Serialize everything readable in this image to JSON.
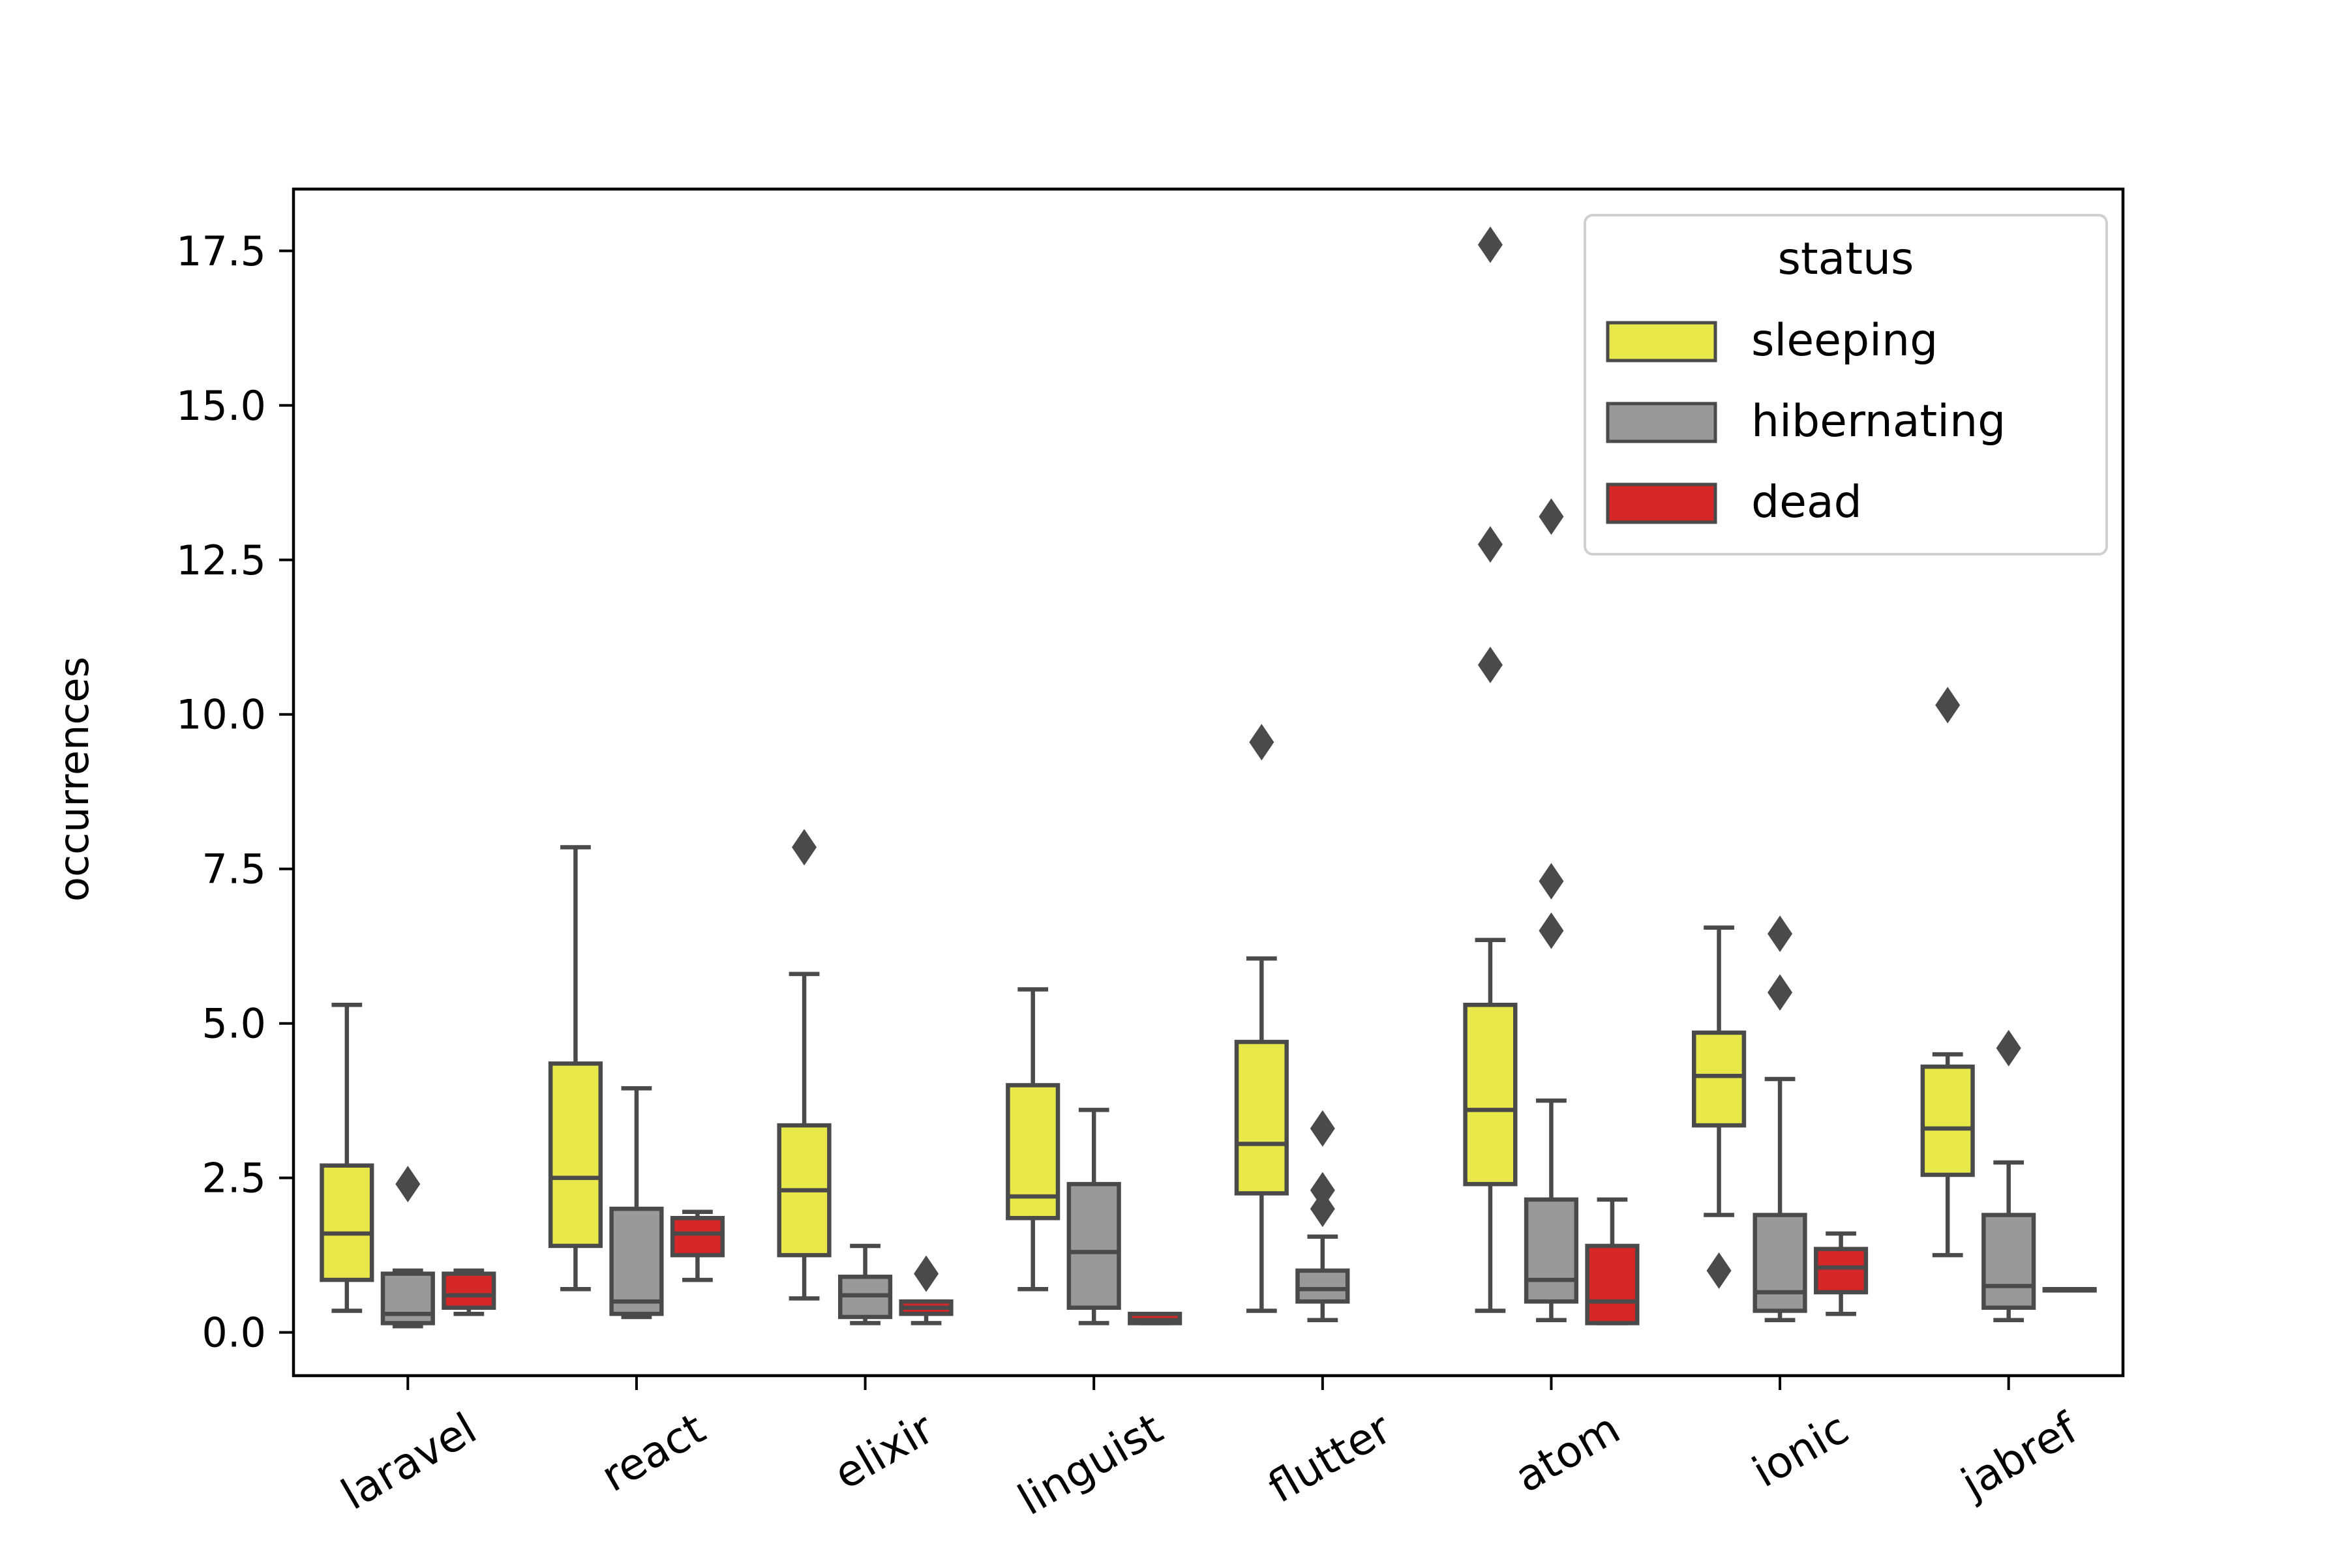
{
  "chart_data": {
    "type": "box",
    "title": "",
    "xlabel": "",
    "ylabel": "occurrences",
    "ylim": [
      -0.7,
      18.5
    ],
    "yticks": [
      "0.0",
      "2.5",
      "5.0",
      "7.5",
      "10.0",
      "12.5",
      "15.0",
      "17.5"
    ],
    "ytick_values": [
      0,
      2.5,
      5,
      7.5,
      10,
      12.5,
      15,
      17.5
    ],
    "categories": [
      "laravel",
      "react",
      "elixir",
      "linguist",
      "flutter",
      "atom",
      "ionic",
      "jabref"
    ],
    "grid": false,
    "legend": {
      "title": "status",
      "placement": "top-right"
    },
    "series": [
      {
        "name": "sleeping",
        "color": "#e8e84a",
        "boxes": [
          {
            "whislo": 0.35,
            "q1": 0.85,
            "med": 1.6,
            "q3": 2.7,
            "whishi": 5.3,
            "fliers": []
          },
          {
            "whislo": 0.7,
            "q1": 1.4,
            "med": 2.5,
            "q3": 4.35,
            "whishi": 7.85,
            "fliers": []
          },
          {
            "whislo": 0.55,
            "q1": 1.25,
            "med": 2.3,
            "q3": 3.35,
            "whishi": 5.8,
            "fliers": [
              7.85
            ]
          },
          {
            "whislo": 0.7,
            "q1": 1.85,
            "med": 2.2,
            "q3": 4.0,
            "whishi": 5.55,
            "fliers": []
          },
          {
            "whislo": 0.35,
            "q1": 2.25,
            "med": 3.05,
            "q3": 4.7,
            "whishi": 6.05,
            "fliers": [
              9.55
            ]
          },
          {
            "whislo": 0.35,
            "q1": 2.4,
            "med": 3.6,
            "q3": 5.3,
            "whishi": 6.35,
            "fliers": [
              10.8,
              12.75,
              17.6
            ]
          },
          {
            "whislo": 1.9,
            "q1": 3.35,
            "med": 4.15,
            "q3": 4.85,
            "whishi": 6.55,
            "fliers": [
              1.0
            ]
          },
          {
            "whislo": 1.25,
            "q1": 2.55,
            "med": 3.3,
            "q3": 4.3,
            "whishi": 4.5,
            "fliers": [
              10.15
            ]
          }
        ]
      },
      {
        "name": "hibernating",
        "color": "#999999",
        "boxes": [
          {
            "whislo": 0.1,
            "q1": 0.15,
            "med": 0.3,
            "q3": 0.95,
            "whishi": 1.0,
            "fliers": [
              2.4
            ]
          },
          {
            "whislo": 0.25,
            "q1": 0.3,
            "med": 0.5,
            "q3": 2.0,
            "whishi": 3.95,
            "fliers": []
          },
          {
            "whislo": 0.15,
            "q1": 0.25,
            "med": 0.6,
            "q3": 0.9,
            "whishi": 1.4,
            "fliers": []
          },
          {
            "whislo": 0.15,
            "q1": 0.4,
            "med": 1.3,
            "q3": 2.4,
            "whishi": 3.6,
            "fliers": []
          },
          {
            "whislo": 0.2,
            "q1": 0.5,
            "med": 0.7,
            "q3": 1.0,
            "whishi": 1.55,
            "fliers": [
              2.0,
              2.3,
              3.3
            ]
          },
          {
            "whislo": 0.2,
            "q1": 0.5,
            "med": 0.85,
            "q3": 2.15,
            "whishi": 3.75,
            "fliers": [
              6.5,
              7.3,
              13.2
            ]
          },
          {
            "whislo": 0.2,
            "q1": 0.35,
            "med": 0.65,
            "q3": 1.9,
            "whishi": 4.1,
            "fliers": [
              5.5,
              6.45
            ]
          },
          {
            "whislo": 0.2,
            "q1": 0.4,
            "med": 0.75,
            "q3": 1.9,
            "whishi": 2.75,
            "fliers": [
              4.6
            ]
          }
        ]
      },
      {
        "name": "dead",
        "color": "#d62728",
        "boxes": [
          {
            "whislo": 0.3,
            "q1": 0.4,
            "med": 0.6,
            "q3": 0.95,
            "whishi": 1.0,
            "fliers": []
          },
          {
            "whislo": 0.85,
            "q1": 1.25,
            "med": 1.6,
            "q3": 1.85,
            "whishi": 1.95,
            "fliers": []
          },
          {
            "whislo": 0.15,
            "q1": 0.3,
            "med": 0.4,
            "q3": 0.5,
            "whishi": 0.5,
            "fliers": [
              0.95
            ]
          },
          {
            "whislo": 0.15,
            "q1": 0.15,
            "med": 0.2,
            "q3": 0.3,
            "whishi": 0.3,
            "fliers": []
          },
          null,
          {
            "whislo": 0.15,
            "q1": 0.15,
            "med": 0.5,
            "q3": 1.4,
            "whishi": 2.15,
            "fliers": []
          },
          {
            "whislo": 0.3,
            "q1": 0.65,
            "med": 1.05,
            "q3": 1.35,
            "whishi": 1.6,
            "fliers": []
          },
          {
            "whislo": 0.7,
            "q1": 0.7,
            "med": 0.7,
            "q3": 0.7,
            "whishi": 0.7,
            "fliers": []
          }
        ]
      }
    ]
  }
}
